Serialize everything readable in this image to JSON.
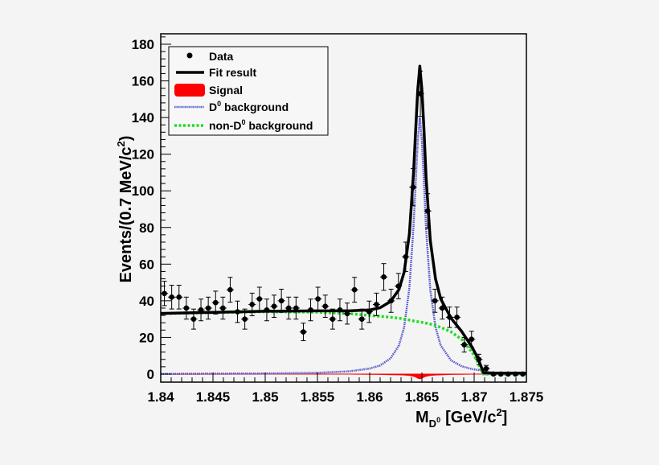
{
  "chart_data": {
    "type": "scatter",
    "xlabel": "M",
    "xlabel_sub": "D",
    "xlabel_subsup": "0",
    "xlabel_unit": "[GeV/c",
    "xlabel_unit_sup": "2",
    "xlabel_close": "]",
    "ylabel": "Events/(0.7 MeV/c",
    "ylabel_sup": "2",
    "ylabel_close": ")",
    "xlim": [
      1.84,
      1.875
    ],
    "ylim": [
      -4.4,
      185.7
    ],
    "x_ticks": [
      "1.84",
      "1.845",
      "1.85",
      "1.855",
      "1.86",
      "1.865",
      "1.87",
      "1.875"
    ],
    "y_ticks": [
      "0",
      "20",
      "40",
      "60",
      "80",
      "100",
      "120",
      "140",
      "160",
      "180"
    ],
    "grid": false,
    "legend_position": "top-left",
    "legend": [
      {
        "label": "Data",
        "style": "marker",
        "color": "#000000"
      },
      {
        "label": "Fit result",
        "style": "line",
        "color": "#000000"
      },
      {
        "label": "Signal",
        "style": "fill",
        "color": "#ff0000"
      },
      {
        "label": "D",
        "sup": "0",
        "suffix": " background",
        "style": "dotted",
        "color": "#5555cc"
      },
      {
        "label": "non-D",
        "sup": "0",
        "suffix": " background",
        "style": "dotted",
        "color": "#22dd22"
      }
    ],
    "data": {
      "name": "Data",
      "bin_width": 0.0007,
      "x_start": 1.84035,
      "values": [
        44,
        42,
        42,
        36,
        30,
        35,
        36,
        39,
        36,
        46,
        34,
        30,
        38,
        41,
        35,
        37,
        40,
        36,
        36,
        23,
        35,
        41,
        37,
        30,
        35,
        33,
        46,
        30,
        34,
        38,
        53,
        40,
        48,
        64,
        102,
        153,
        89,
        40,
        36,
        31,
        31,
        16,
        19,
        8,
        3,
        0,
        0,
        0,
        0,
        0
      ]
    },
    "curves_x": [
      1.84,
      1.845,
      1.85,
      1.855,
      1.858,
      1.86,
      1.861,
      1.862,
      1.8628,
      1.8633,
      1.8638,
      1.8642,
      1.8644,
      1.8646,
      1.8648,
      1.865,
      1.8652,
      1.8654,
      1.8658,
      1.8663,
      1.8668,
      1.8678,
      1.8688,
      1.8698,
      1.8703,
      1.8706,
      1.8709,
      1.872,
      1.875
    ],
    "series": [
      {
        "name": "Fit result",
        "color": "#000000",
        "values": [
          33.1,
          33.7,
          34.3,
          34.5,
          34.5,
          35,
          36.2,
          39.6,
          46.1,
          55.6,
          76.5,
          110,
          133,
          155,
          168,
          155,
          133,
          107,
          73,
          52,
          41,
          30.4,
          23.3,
          14.7,
          9.3,
          5.1,
          0.8,
          0.5,
          0.5
        ]
      },
      {
        "name": "D0 background",
        "color": "#5555cc",
        "values": [
          0.1,
          0.2,
          0.3,
          0.7,
          1.5,
          3.0,
          4.7,
          8.6,
          15.6,
          25.6,
          47,
          81,
          104,
          127,
          140,
          127,
          104,
          79,
          46,
          25.6,
          15.6,
          7.4,
          4.3,
          2.7,
          2.3,
          2.1,
          0,
          0,
          0
        ]
      },
      {
        "name": "non-D0 background",
        "color": "#22dd22",
        "values": [
          33,
          33.5,
          34,
          33.8,
          33,
          32,
          31.5,
          31,
          30.5,
          30,
          29.5,
          29,
          28.8,
          28.6,
          28.4,
          28.2,
          28,
          27.8,
          27.3,
          26.5,
          25.5,
          23,
          19,
          12,
          7,
          3,
          0,
          0,
          0
        ]
      },
      {
        "name": "Signal",
        "color": "#ff0000",
        "values": [
          0,
          0,
          0,
          0,
          0,
          -0.1,
          -0.2,
          -0.3,
          -0.4,
          -0.5,
          -0.7,
          -1.2,
          -1.6,
          -2.2,
          -2.6,
          -2.2,
          -1.6,
          -1.2,
          -0.7,
          -0.5,
          -0.4,
          -0.2,
          -0.1,
          0,
          0,
          0,
          0,
          0,
          0
        ]
      }
    ]
  }
}
